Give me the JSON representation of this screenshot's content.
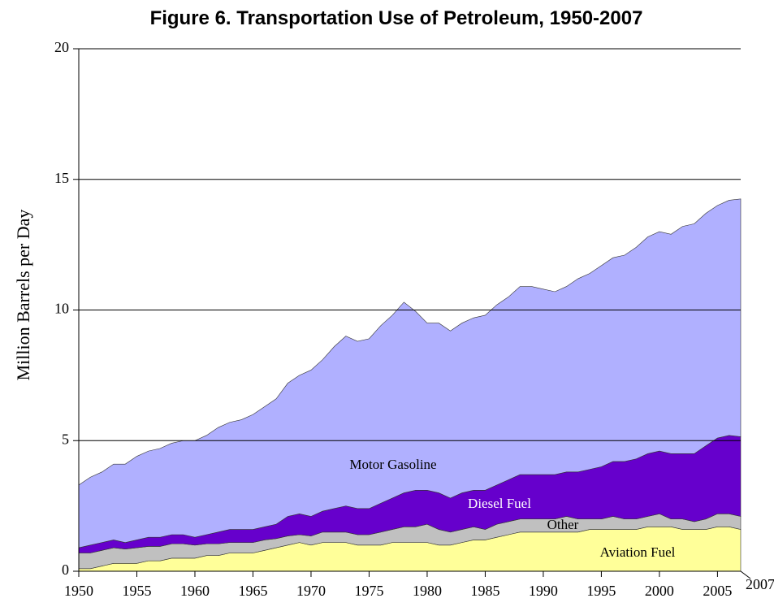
{
  "chart_data": {
    "type": "area",
    "stacked": true,
    "title": "Figure 6. Transportation Use of Petroleum, 1950-2007",
    "ylabel": "Million Barrels per Day",
    "x": [
      1950,
      1951,
      1952,
      1953,
      1954,
      1955,
      1956,
      1957,
      1958,
      1959,
      1960,
      1961,
      1962,
      1963,
      1964,
      1965,
      1966,
      1967,
      1968,
      1969,
      1970,
      1971,
      1972,
      1973,
      1974,
      1975,
      1976,
      1977,
      1978,
      1979,
      1980,
      1981,
      1982,
      1983,
      1984,
      1985,
      1986,
      1987,
      1988,
      1989,
      1990,
      1991,
      1992,
      1993,
      1994,
      1995,
      1996,
      1997,
      1998,
      1999,
      2000,
      2001,
      2002,
      2003,
      2004,
      2005,
      2006,
      2007
    ],
    "xlim": [
      1950,
      2007
    ],
    "xticks": [
      1950,
      1955,
      1960,
      1965,
      1970,
      1975,
      1980,
      1985,
      1990,
      1995,
      2000,
      2005,
      2007
    ],
    "ylim": [
      0,
      20
    ],
    "yticks": [
      0,
      5,
      10,
      15,
      20
    ],
    "grid": true,
    "series": [
      {
        "name": "Aviation Fuel",
        "color": "#ffff99",
        "label_color": "#000000",
        "values": [
          0.1,
          0.1,
          0.2,
          0.3,
          0.3,
          0.3,
          0.4,
          0.4,
          0.5,
          0.5,
          0.5,
          0.6,
          0.6,
          0.7,
          0.7,
          0.7,
          0.8,
          0.9,
          1.0,
          1.1,
          1.0,
          1.1,
          1.1,
          1.1,
          1.0,
          1.0,
          1.0,
          1.1,
          1.1,
          1.1,
          1.1,
          1.0,
          1.0,
          1.1,
          1.2,
          1.2,
          1.3,
          1.4,
          1.5,
          1.5,
          1.5,
          1.5,
          1.5,
          1.5,
          1.6,
          1.6,
          1.6,
          1.6,
          1.6,
          1.7,
          1.7,
          1.7,
          1.6,
          1.6,
          1.6,
          1.7,
          1.7,
          1.6
        ]
      },
      {
        "name": "Other",
        "color": "#c0c0c0",
        "label_color": "#000000",
        "values": [
          0.6,
          0.6,
          0.6,
          0.6,
          0.55,
          0.6,
          0.55,
          0.55,
          0.55,
          0.55,
          0.5,
          0.45,
          0.45,
          0.4,
          0.4,
          0.4,
          0.4,
          0.35,
          0.35,
          0.3,
          0.35,
          0.4,
          0.4,
          0.4,
          0.4,
          0.4,
          0.5,
          0.5,
          0.6,
          0.6,
          0.7,
          0.6,
          0.5,
          0.5,
          0.5,
          0.4,
          0.5,
          0.5,
          0.5,
          0.5,
          0.5,
          0.5,
          0.6,
          0.5,
          0.4,
          0.4,
          0.5,
          0.4,
          0.4,
          0.4,
          0.5,
          0.3,
          0.4,
          0.3,
          0.4,
          0.5,
          0.5,
          0.5
        ]
      },
      {
        "name": "Diesel Fuel",
        "color": "#6600cc",
        "label_color": "#ffffff",
        "values": [
          0.2,
          0.3,
          0.3,
          0.3,
          0.25,
          0.3,
          0.35,
          0.35,
          0.35,
          0.35,
          0.3,
          0.35,
          0.45,
          0.5,
          0.5,
          0.5,
          0.5,
          0.55,
          0.75,
          0.8,
          0.75,
          0.8,
          0.9,
          1.0,
          1.0,
          1.0,
          1.1,
          1.2,
          1.3,
          1.4,
          1.3,
          1.4,
          1.3,
          1.4,
          1.4,
          1.5,
          1.5,
          1.6,
          1.7,
          1.7,
          1.7,
          1.7,
          1.7,
          1.8,
          1.9,
          2.0,
          2.1,
          2.2,
          2.3,
          2.4,
          2.4,
          2.5,
          2.5,
          2.6,
          2.8,
          2.9,
          3.0,
          3.05
        ]
      },
      {
        "name": "Motor Gasoline",
        "color": "#b0b0ff",
        "label_color": "#000000",
        "values": [
          2.4,
          2.6,
          2.7,
          2.9,
          3.0,
          3.2,
          3.3,
          3.4,
          3.5,
          3.6,
          3.7,
          3.8,
          4.0,
          4.1,
          4.2,
          4.4,
          4.6,
          4.8,
          5.1,
          5.3,
          5.6,
          5.8,
          6.2,
          6.5,
          6.4,
          6.5,
          6.8,
          7.0,
          7.3,
          6.85,
          6.4,
          6.5,
          6.4,
          6.5,
          6.6,
          6.7,
          6.9,
          7.0,
          7.2,
          7.2,
          7.1,
          7.0,
          7.1,
          7.4,
          7.5,
          7.7,
          7.8,
          7.9,
          8.1,
          8.3,
          8.4,
          8.4,
          8.7,
          8.8,
          8.9,
          8.9,
          9.0,
          9.1
        ]
      }
    ]
  }
}
